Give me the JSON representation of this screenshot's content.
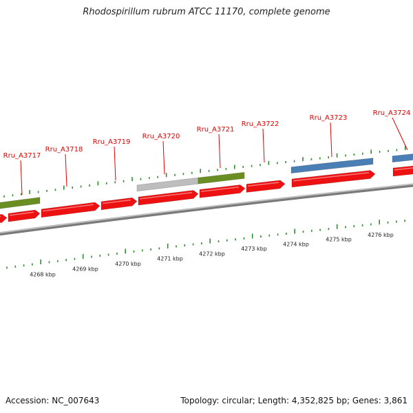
{
  "header": {
    "title": "Rhodospirillum rubrum ATCC 11170, complete genome"
  },
  "footer": {
    "accession_label": "Accession:",
    "accession_value": "NC_007643",
    "stats": "Topology: circular; Length: 4,352,825 bp; Genes: 3,861"
  },
  "colors": {
    "cds": "#ee1111",
    "trna": "#6b8e23",
    "other": "#bdbdbd",
    "rrna": "#4a7fb5",
    "backbone": "#7a7a7a",
    "ticks": "#2e8b2e",
    "label": "#e00000"
  },
  "scale_labels": [
    "4268 kbp",
    "4269 kbp",
    "4270 kbp",
    "4271 kbp",
    "4272 kbp",
    "4273 kbp",
    "4274 kbp",
    "4275 kbp",
    "4276 kbp"
  ],
  "genes": [
    {
      "label": "Rru_A3717"
    },
    {
      "label": "Rru_A3718"
    },
    {
      "label": "Rru_A3719"
    },
    {
      "label": "Rru_A3720"
    },
    {
      "label": "Rru_A3721"
    },
    {
      "label": "Rru_A3722"
    },
    {
      "label": "Rru_A3723"
    },
    {
      "label": "Rru_A3724"
    }
  ]
}
